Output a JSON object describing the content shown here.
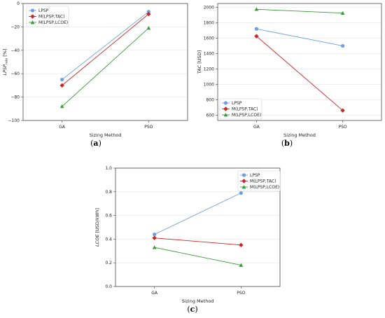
{
  "chart_data": [
    {
      "type": "line",
      "caption": "(a)",
      "categories": [
        "GA",
        "PSO"
      ],
      "xlabel": "Sizing Method",
      "ylabel": "LPSP_rate [%]",
      "ylabel_main": "LPSP",
      "ylabel_sub": "rate",
      "ylabel_unit": " [%]",
      "ylim": [
        -100,
        0
      ],
      "yticks": [
        -100,
        -80,
        -60,
        -40,
        -20,
        0
      ],
      "ytick_labels": [
        "−100",
        "−80",
        "−60",
        "−40",
        "−20",
        "0"
      ],
      "grid": true,
      "legend_position": "upper-left",
      "series": [
        {
          "name": "LPSP",
          "values": [
            -65,
            -7
          ],
          "color": "#6d9fe0",
          "marker": "circle"
        },
        {
          "name": "M(LPSP,TAC)",
          "values": [
            -70,
            -9
          ],
          "color": "#c62828",
          "marker": "diamond"
        },
        {
          "name": "M(LPSP,LCOE)",
          "values": [
            -88,
            -21
          ],
          "color": "#3a9a3a",
          "marker": "triangle"
        }
      ]
    },
    {
      "type": "line",
      "caption": "(b)",
      "categories": [
        "GA",
        "PSO"
      ],
      "xlabel": "Sizing Method",
      "ylabel": "TAC [USD]",
      "ylabel_main": "TAC",
      "ylabel_unit": " [USD]",
      "ylim": [
        530,
        2050
      ],
      "yticks": [
        600,
        800,
        1000,
        1200,
        1400,
        1600,
        1800,
        2000
      ],
      "ytick_labels": [
        "600",
        "800",
        "1000",
        "1200",
        "1400",
        "1600",
        "1800",
        "2000"
      ],
      "grid": true,
      "legend_position": "lower-left",
      "series": [
        {
          "name": "LPSP",
          "values": [
            1720,
            1500
          ],
          "color": "#6d9fe0",
          "marker": "circle"
        },
        {
          "name": "M(LPSP,TAC)",
          "values": [
            1625,
            660
          ],
          "color": "#c62828",
          "marker": "diamond"
        },
        {
          "name": "M(LPSP,LCOE)",
          "values": [
            1975,
            1925
          ],
          "color": "#3a9a3a",
          "marker": "triangle"
        }
      ]
    },
    {
      "type": "line",
      "caption": "(c)",
      "categories": [
        "GA",
        "PSO"
      ],
      "xlabel": "Sizing Method",
      "ylabel": "LCOE [USD/kWh]",
      "ylabel_main": "LCOE",
      "ylabel_unit": " [USD/kWh]",
      "ylim": [
        0,
        1
      ],
      "yticks": [
        0,
        0.2,
        0.4,
        0.6,
        0.8,
        1.0
      ],
      "ytick_labels": [
        "0.0",
        "0.2",
        "0.4",
        "0.6",
        "0.8",
        "1.0"
      ],
      "grid": true,
      "legend_position": "upper-right",
      "series": [
        {
          "name": "LPSP",
          "values": [
            0.44,
            0.79
          ],
          "color": "#6d9fe0",
          "marker": "circle"
        },
        {
          "name": "M(LPSP,TAC)",
          "values": [
            0.41,
            0.35
          ],
          "color": "#c62828",
          "marker": "diamond"
        },
        {
          "name": "M(LPSP,LCOE)",
          "values": [
            0.33,
            0.18
          ],
          "color": "#3a9a3a",
          "marker": "triangle"
        }
      ]
    }
  ]
}
